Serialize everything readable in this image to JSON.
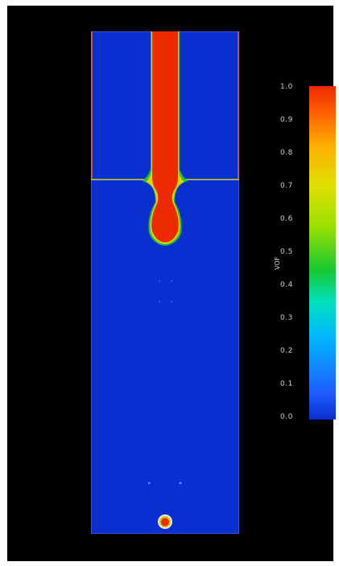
{
  "colorbar": {
    "label": "VOF",
    "ticks": [
      "1.0",
      "0.9",
      "0.8",
      "0.7",
      "0.6",
      "0.5",
      "0.4",
      "0.3",
      "0.2",
      "0.1",
      "0.0"
    ],
    "range": [
      0.0,
      1.0
    ]
  },
  "colors": {
    "background": "#000000",
    "phase_low": "#0a2fd0",
    "phase_high": "#ee2a00",
    "interface": "#18c830"
  }
}
